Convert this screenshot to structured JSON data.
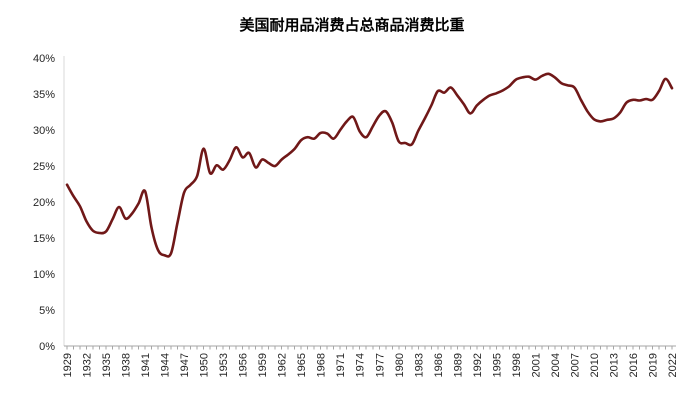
{
  "title": "美国耐用品消费占总商品消费比重",
  "colors": {
    "line": "#701818",
    "x_axis_line": "#a6a6a6",
    "y_axis_line": "#d9d9d9",
    "tick": "#a6a6a6",
    "label_text": "#262626",
    "title_text": "#000000",
    "background": "#ffffff"
  },
  "chart_data": {
    "type": "line",
    "title": "美国耐用品消费占总商品消费比重",
    "x_start": 1929,
    "x_end": 2022,
    "x_step": 1,
    "values": [
      22.4,
      20.8,
      19.4,
      17.3,
      16.0,
      15.7,
      15.9,
      17.6,
      19.3,
      17.7,
      18.4,
      19.8,
      21.5,
      16.4,
      13.3,
      12.6,
      12.9,
      17.2,
      21.3,
      22.4,
      23.6,
      27.4,
      24.0,
      25.1,
      24.5,
      25.8,
      27.6,
      26.2,
      26.8,
      24.8,
      25.9,
      25.4,
      25.0,
      25.9,
      26.6,
      27.4,
      28.6,
      29.0,
      28.8,
      29.6,
      29.5,
      28.8,
      30.0,
      31.2,
      31.8,
      29.8,
      29.0,
      30.5,
      32.0,
      32.6,
      31.0,
      28.4,
      28.2,
      28.0,
      29.9,
      31.6,
      33.4,
      35.4,
      35.2,
      35.9,
      34.8,
      33.6,
      32.3,
      33.4,
      34.2,
      34.8,
      35.1,
      35.5,
      36.1,
      37.0,
      37.3,
      37.4,
      37.0,
      37.5,
      37.8,
      37.3,
      36.5,
      36.2,
      35.9,
      34.2,
      32.6,
      31.5,
      31.2,
      31.4,
      31.6,
      32.4,
      33.8,
      34.2,
      34.1,
      34.3,
      34.2,
      35.4,
      37.1,
      35.8
    ],
    "ylim": [
      0,
      40
    ],
    "ytick_labels": [
      "0%",
      "5%",
      "10%",
      "15%",
      "20%",
      "25%",
      "30%",
      "35%",
      "40%"
    ],
    "xtick_labels": [
      "1929",
      "1932",
      "1935",
      "1938",
      "1941",
      "1944",
      "1947",
      "1950",
      "1953",
      "1956",
      "1959",
      "1962",
      "1965",
      "1968",
      "1971",
      "1974",
      "1977",
      "1980",
      "1983",
      "1986",
      "1989",
      "1992",
      "1995",
      "1998",
      "2001",
      "2004",
      "2007",
      "2010",
      "2013",
      "2016",
      "2019",
      "2022"
    ],
    "grid": false,
    "legend": "none"
  }
}
